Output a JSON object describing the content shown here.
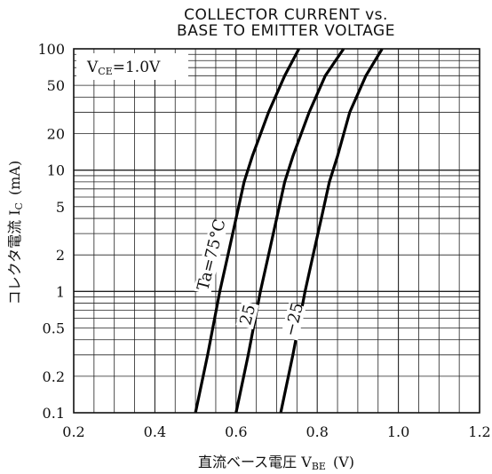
{
  "chart_data": {
    "type": "line",
    "title": "COLLECTOR CURRENT vs. BASE TO EMITTER VOLTAGE",
    "title_lines": [
      "COLLECTOR CURRENT vs.",
      "BASE TO EMITTER VOLTAGE"
    ],
    "xlabel": "直流ベース電圧 V",
    "xlabel_sub": "BE",
    "xlabel_unit": "(V)",
    "ylabel": "コレクタ電流 I",
    "ylabel_sub": "C",
    "ylabel_unit": "(mA)",
    "xlim": [
      0.2,
      1.2
    ],
    "ylim": [
      0.1,
      100
    ],
    "yscale": "log",
    "grid": true,
    "condition": "V",
    "condition_sub": "CE",
    "condition_value": "=1.0V",
    "x_ticks": [
      "0.2",
      "0.4",
      "0.6",
      "0.8",
      "1.0",
      "1.2"
    ],
    "x_tick_values": [
      0.2,
      0.4,
      0.6,
      0.8,
      1.0,
      1.2
    ],
    "y_ticks": [
      "0.1",
      "0.2",
      "0.5",
      "1",
      "2",
      "5",
      "10",
      "20",
      "50",
      "100"
    ],
    "y_tick_values": [
      0.1,
      0.2,
      0.5,
      1,
      2,
      5,
      10,
      20,
      50,
      100
    ],
    "series": [
      {
        "name": "Ta=75°C",
        "points": [
          [
            0.5,
            0.1
          ],
          [
            0.53,
            0.3
          ],
          [
            0.56,
            1
          ],
          [
            0.58,
            2
          ],
          [
            0.6,
            4
          ],
          [
            0.62,
            8
          ],
          [
            0.64,
            13
          ],
          [
            0.68,
            30
          ],
          [
            0.72,
            60
          ],
          [
            0.755,
            100
          ]
        ]
      },
      {
        "name": "25",
        "points": [
          [
            0.6,
            0.1
          ],
          [
            0.63,
            0.3
          ],
          [
            0.66,
            1
          ],
          [
            0.68,
            2
          ],
          [
            0.7,
            4
          ],
          [
            0.72,
            8
          ],
          [
            0.74,
            13
          ],
          [
            0.78,
            30
          ],
          [
            0.82,
            60
          ],
          [
            0.865,
            100
          ]
        ]
      },
      {
        "name": "−25",
        "points": [
          [
            0.71,
            0.1
          ],
          [
            0.74,
            0.3
          ],
          [
            0.77,
            1
          ],
          [
            0.79,
            2
          ],
          [
            0.81,
            4
          ],
          [
            0.83,
            8
          ],
          [
            0.85,
            13
          ],
          [
            0.88,
            30
          ],
          [
            0.92,
            60
          ],
          [
            0.96,
            100
          ]
        ]
      }
    ],
    "curve_labels": [
      {
        "text": "Ta=75°C",
        "x": 0.53,
        "y": 1.0
      },
      {
        "text": "25",
        "x": 0.635,
        "y": 0.52
      },
      {
        "text": "−25",
        "x": 0.745,
        "y": 0.42
      }
    ]
  }
}
